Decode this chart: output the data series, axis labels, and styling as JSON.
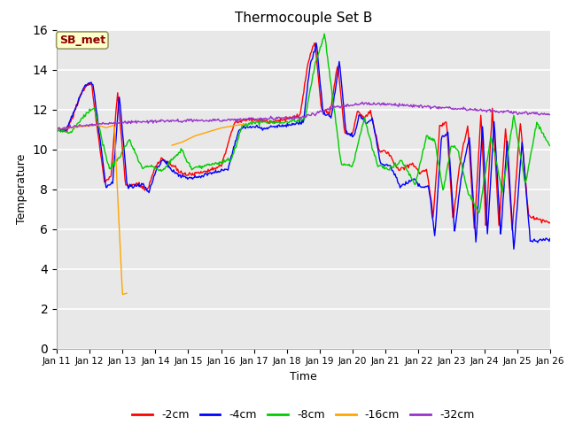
{
  "title": "Thermocouple Set B",
  "xlabel": "Time",
  "ylabel": "Temperature",
  "ylim": [
    0,
    16
  ],
  "xlim": [
    0,
    15
  ],
  "yticks": [
    0,
    2,
    4,
    6,
    8,
    10,
    12,
    14,
    16
  ],
  "xtick_labels": [
    "Jan 11",
    "Jan 12",
    "Jan 13",
    "Jan 14",
    "Jan 15",
    "Jan 16",
    "Jan 17",
    "Jan 18",
    "Jan 19",
    "Jan 20",
    "Jan 21",
    "Jan 22",
    "Jan 23",
    "Jan 24",
    "Jan 25",
    "Jan 26"
  ],
  "annotation_text": "SB_met",
  "series_colors": [
    "red",
    "blue",
    "#00cc00",
    "#FFA500",
    "#9932CC"
  ],
  "series_labels": [
    "-2cm",
    "-4cm",
    "-8cm",
    "-16cm",
    "-32cm"
  ],
  "bg_color": "#e8e8e8",
  "fig_color": "white",
  "grid_color": "white"
}
